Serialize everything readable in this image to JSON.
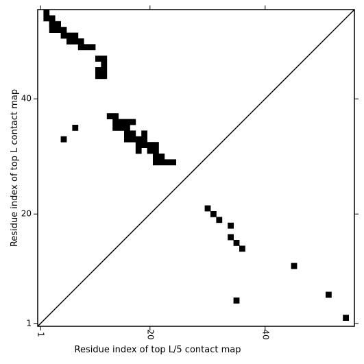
{
  "chart_data": {
    "type": "heatmap",
    "xlabel": "Residue index of top L/5 contact map",
    "ylabel": "Residue index of top L contact map",
    "xlim": [
      0.5,
      55.5
    ],
    "ylim": [
      0.5,
      55.5
    ],
    "xticks": [
      1,
      20,
      40
    ],
    "yticks": [
      1,
      20,
      40
    ],
    "xtick_labels": [
      "1",
      "20",
      "40"
    ],
    "ytick_labels": [
      "1",
      "20",
      "40"
    ],
    "diagonal": true,
    "cell_color": "#000000",
    "background_color": "#ffffff",
    "upper_triangle_contacts": [
      [
        2,
        54
      ],
      [
        2,
        55
      ],
      [
        3,
        53
      ],
      [
        3,
        54
      ],
      [
        3,
        52
      ],
      [
        4,
        52
      ],
      [
        3,
        53
      ],
      [
        4,
        53
      ],
      [
        5,
        52
      ],
      [
        5,
        51
      ],
      [
        6,
        51
      ],
      [
        7,
        51
      ],
      [
        6,
        50
      ],
      [
        7,
        50
      ],
      [
        8,
        50
      ],
      [
        8,
        49
      ],
      [
        9,
        49
      ],
      [
        10,
        49
      ],
      [
        11,
        47
      ],
      [
        12,
        47
      ],
      [
        12,
        46
      ],
      [
        11,
        45
      ],
      [
        12,
        45
      ],
      [
        11,
        44
      ],
      [
        12,
        44
      ],
      [
        13,
        37
      ],
      [
        14,
        37
      ],
      [
        14,
        36
      ],
      [
        15,
        36
      ],
      [
        16,
        36
      ],
      [
        17,
        36
      ],
      [
        14,
        35
      ],
      [
        15,
        35
      ],
      [
        16,
        35
      ],
      [
        16,
        34
      ],
      [
        17,
        34
      ],
      [
        16,
        33
      ],
      [
        17,
        33
      ],
      [
        18,
        33
      ],
      [
        19,
        33
      ],
      [
        19,
        34
      ],
      [
        18,
        32
      ],
      [
        19,
        32
      ],
      [
        20,
        32
      ],
      [
        21,
        32
      ],
      [
        18,
        31
      ],
      [
        20,
        31
      ],
      [
        21,
        31
      ],
      [
        21,
        30
      ],
      [
        22,
        30
      ],
      [
        24,
        29
      ],
      [
        21,
        29
      ],
      [
        22,
        29
      ],
      [
        23,
        29
      ],
      [
        5,
        33
      ],
      [
        7,
        35
      ]
    ],
    "lower_triangle_contacts": [
      [
        30,
        21
      ],
      [
        31,
        20
      ],
      [
        32,
        19
      ],
      [
        34,
        18
      ],
      [
        34,
        16
      ],
      [
        35,
        15
      ],
      [
        36,
        14
      ],
      [
        45,
        11
      ],
      [
        51,
        6
      ],
      [
        54,
        2
      ],
      [
        35,
        5
      ]
    ]
  }
}
